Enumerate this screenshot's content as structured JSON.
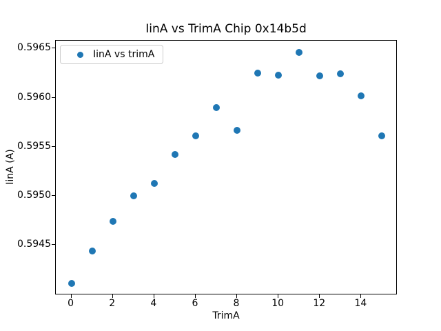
{
  "chart_data": {
    "type": "scatter",
    "title": "IinA vs TrimA Chip 0x14b5d",
    "xlabel": "TrimA",
    "ylabel": "IinA (A)",
    "legend": {
      "label": "IinA vs trimA",
      "position": "upper left"
    },
    "marker_color": "#1f77b4",
    "grid": false,
    "x": [
      0,
      1,
      2,
      3,
      4,
      5,
      6,
      7,
      8,
      9,
      10,
      11,
      12,
      13,
      14,
      15
    ],
    "y": [
      0.59411,
      0.59444,
      0.59474,
      0.595,
      0.59513,
      0.59542,
      0.59561,
      0.5959,
      0.59567,
      0.59625,
      0.59623,
      0.59646,
      0.59622,
      0.59624,
      0.59602,
      0.59561
    ],
    "xlim": [
      -0.75,
      15.75
    ],
    "ylim": [
      0.59399,
      0.59658
    ],
    "x_ticks": [
      0,
      2,
      4,
      6,
      8,
      10,
      12,
      14
    ],
    "x_tick_labels": [
      "0",
      "2",
      "4",
      "6",
      "8",
      "10",
      "12",
      "14"
    ],
    "y_ticks": [
      0.5945,
      0.595,
      0.5955,
      0.596,
      0.5965
    ],
    "y_tick_labels": [
      "0.5945",
      "0.5950",
      "0.5955",
      "0.5960",
      "0.5965"
    ]
  }
}
